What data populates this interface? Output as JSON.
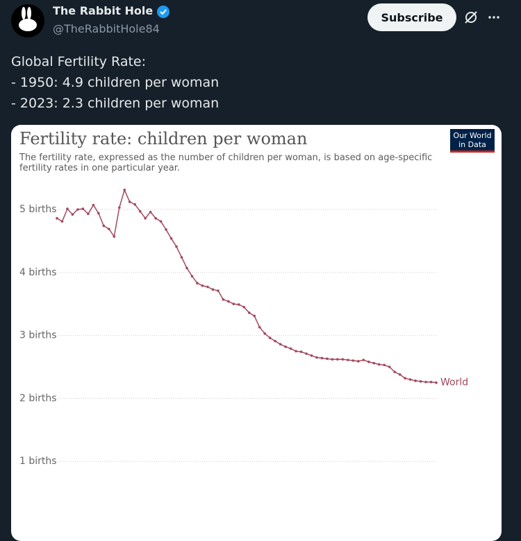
{
  "tweet": {
    "name": "The Rabbit Hole",
    "handle": "@TheRabbitHole84",
    "button": "Subscribe",
    "text": [
      "Global Fertility Rate:",
      "- 1950: 4.9 children per woman",
      "- 2023: 2.3 children per woman"
    ]
  },
  "chart_data": {
    "type": "line",
    "title": "Fertility rate: children per woman",
    "subtitle": "The fertility rate, expressed as the number of children per woman, is based on age-specific fertility rates in one particular year.",
    "logo": [
      "Our World",
      "in Data"
    ],
    "series": [
      {
        "name": "World",
        "color": "#a2485c",
        "values": [
          4.86,
          4.81,
          5.01,
          4.92,
          5.0,
          5.01,
          4.93,
          5.07,
          4.94,
          4.74,
          4.69,
          4.57,
          5.03,
          5.31,
          5.12,
          5.08,
          4.97,
          4.86,
          4.96,
          4.86,
          4.81,
          4.68,
          4.54,
          4.41,
          4.24,
          4.07,
          3.94,
          3.83,
          3.79,
          3.77,
          3.73,
          3.71,
          3.57,
          3.54,
          3.5,
          3.49,
          3.45,
          3.36,
          3.31,
          3.13,
          3.03,
          2.96,
          2.91,
          2.86,
          2.82,
          2.79,
          2.75,
          2.74,
          2.71,
          2.68,
          2.65,
          2.64,
          2.63,
          2.62,
          2.62,
          2.62,
          2.61,
          2.6,
          2.59,
          2.61,
          2.58,
          2.56,
          2.54,
          2.53,
          2.5,
          2.42,
          2.38,
          2.32,
          2.3,
          2.28,
          2.27,
          2.26,
          2.26,
          2.25
        ]
      }
    ],
    "ylim": [
      0,
      5.4
    ],
    "yticks": [
      {
        "value": 1,
        "label": "1 births"
      },
      {
        "value": 2,
        "label": "2 births"
      },
      {
        "value": 3,
        "label": "3 births"
      },
      {
        "value": 4,
        "label": "4 births"
      },
      {
        "value": 5,
        "label": "5 births"
      }
    ],
    "grid": true
  }
}
